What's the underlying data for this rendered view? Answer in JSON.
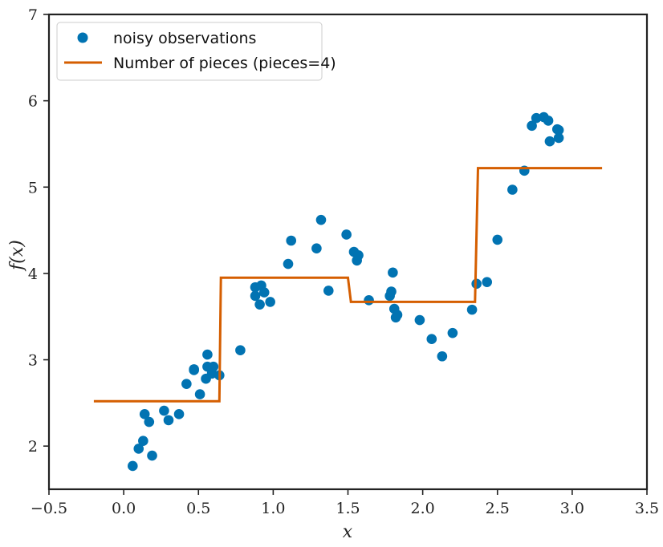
{
  "chart_data": {
    "type": "scatter",
    "xlabel": "x",
    "ylabel": "f(x)",
    "xlim": [
      -0.5,
      3.5
    ],
    "ylim": [
      1.5,
      7
    ],
    "xticks": [
      -0.5,
      0.0,
      0.5,
      1.0,
      1.5,
      2.0,
      2.5,
      3.0,
      3.5
    ],
    "xtick_labels": [
      "−0.5",
      "0.0",
      "0.5",
      "1.0",
      "1.5",
      "2.0",
      "2.5",
      "3.0",
      "3.5"
    ],
    "yticks": [
      2,
      3,
      4,
      5,
      6,
      7
    ],
    "ytick_labels": [
      "2",
      "3",
      "4",
      "5",
      "6",
      "7"
    ],
    "grid": false,
    "legend_position": "top-left",
    "series": [
      {
        "name": "noisy observations",
        "kind": "scatter",
        "color": "#0173b2",
        "points": [
          [
            0.06,
            1.77
          ],
          [
            0.1,
            1.97
          ],
          [
            0.13,
            2.06
          ],
          [
            0.14,
            2.37
          ],
          [
            0.17,
            2.28
          ],
          [
            0.19,
            1.89
          ],
          [
            0.27,
            2.41
          ],
          [
            0.3,
            2.3
          ],
          [
            0.37,
            2.37
          ],
          [
            0.42,
            2.72
          ],
          [
            0.47,
            2.88
          ],
          [
            0.47,
            2.89
          ],
          [
            0.51,
            2.6
          ],
          [
            0.55,
            2.78
          ],
          [
            0.56,
            2.92
          ],
          [
            0.56,
            3.06
          ],
          [
            0.59,
            2.84
          ],
          [
            0.6,
            2.92
          ],
          [
            0.64,
            2.82
          ],
          [
            0.78,
            3.11
          ],
          [
            0.88,
            3.84
          ],
          [
            0.88,
            3.74
          ],
          [
            0.91,
            3.64
          ],
          [
            0.92,
            3.86
          ],
          [
            0.94,
            3.78
          ],
          [
            0.98,
            3.67
          ],
          [
            1.1,
            4.11
          ],
          [
            1.12,
            4.38
          ],
          [
            1.29,
            4.29
          ],
          [
            1.32,
            4.62
          ],
          [
            1.37,
            3.8
          ],
          [
            1.49,
            4.45
          ],
          [
            1.54,
            4.25
          ],
          [
            1.56,
            4.15
          ],
          [
            1.57,
            4.21
          ],
          [
            1.64,
            3.69
          ],
          [
            1.78,
            3.74
          ],
          [
            1.79,
            3.79
          ],
          [
            1.8,
            4.01
          ],
          [
            1.81,
            3.59
          ],
          [
            1.82,
            3.49
          ],
          [
            1.83,
            3.52
          ],
          [
            1.98,
            3.46
          ],
          [
            2.06,
            3.24
          ],
          [
            2.13,
            3.04
          ],
          [
            2.2,
            3.31
          ],
          [
            2.33,
            3.58
          ],
          [
            2.36,
            3.88
          ],
          [
            2.43,
            3.9
          ],
          [
            2.5,
            4.39
          ],
          [
            2.6,
            4.97
          ],
          [
            2.68,
            5.19
          ],
          [
            2.73,
            5.71
          ],
          [
            2.76,
            5.8
          ],
          [
            2.81,
            5.81
          ],
          [
            2.84,
            5.77
          ],
          [
            2.85,
            5.53
          ],
          [
            2.9,
            5.67
          ],
          [
            2.91,
            5.57
          ],
          [
            2.91,
            5.66
          ]
        ]
      },
      {
        "name": "Number of pieces (pieces=4)",
        "kind": "line",
        "color": "#d55e00",
        "points": [
          [
            -0.2,
            2.52
          ],
          [
            0.64,
            2.52
          ],
          [
            0.65,
            3.95
          ],
          [
            1.5,
            3.95
          ],
          [
            1.52,
            3.67
          ],
          [
            2.35,
            3.67
          ],
          [
            2.37,
            5.22
          ],
          [
            3.2,
            5.22
          ]
        ]
      }
    ]
  }
}
